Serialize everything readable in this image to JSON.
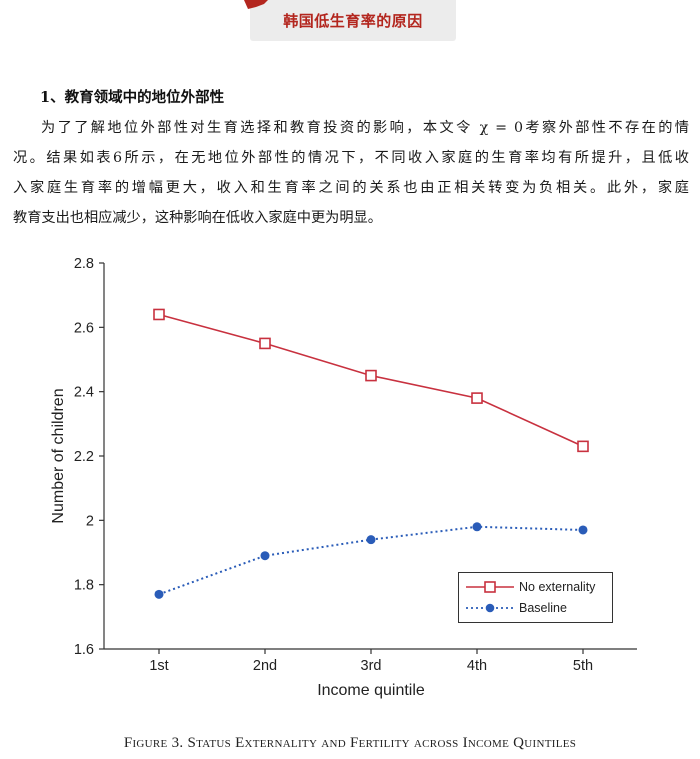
{
  "header": {
    "title": "韩国低生育率的原因",
    "accent_color": "#b3261e"
  },
  "section": {
    "heading": "1、教育领域中的地位外部性"
  },
  "body_lines": [
    "为了了解地位外部性对生育选择和教育投资的影响，本文令 χ = 0考察外部性不存在的情",
    "况。结果如表6所示，在无地位外部性的情况下，不同收入家庭的生育率均有所提升，且低收",
    "入家庭生育率的增幅更大，收入和生育率之间的关系也由正相关转变为负相关。此外，家庭",
    "教育支出也相应减少，这种影响在低收入家庭中更为明显。"
  ],
  "chart_data": {
    "type": "line",
    "xlabel": "Income quintile",
    "ylabel": "Number of children",
    "categories": [
      "1st",
      "2nd",
      "3rd",
      "4th",
      "5th"
    ],
    "ylim": [
      1.6,
      2.8
    ],
    "yticks": [
      "1.6",
      "1.8",
      "2",
      "2.2",
      "2.4",
      "2.6",
      "2.8"
    ],
    "ytick_values": [
      1.6,
      1.8,
      2.0,
      2.2,
      2.4,
      2.6,
      2.8
    ],
    "legend_position": "bottom-right",
    "series": [
      {
        "name": "No externality",
        "values": [
          2.64,
          2.55,
          2.45,
          2.38,
          2.23
        ],
        "color": "#c8313f",
        "style": "solid",
        "marker": "open-square"
      },
      {
        "name": "Baseline",
        "values": [
          1.77,
          1.89,
          1.94,
          1.98,
          1.97
        ],
        "color": "#2a5cb8",
        "style": "dotted",
        "marker": "filled-circle"
      }
    ]
  },
  "caption": {
    "prefix": "Figure 3.",
    "text": "Status Externality and Fertility across Income Quintiles"
  }
}
